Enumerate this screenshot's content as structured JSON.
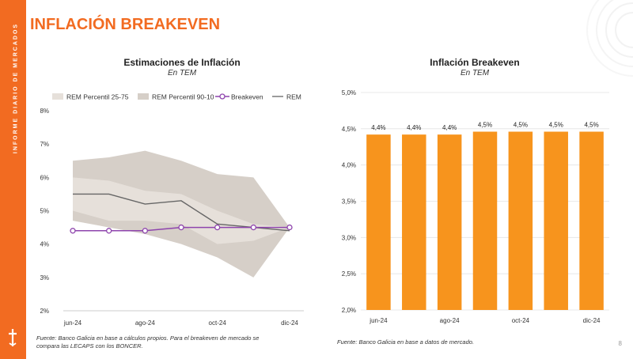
{
  "sidebar": {
    "text": "INFORME DIARIO DE MERCADOS"
  },
  "page": {
    "title": "INFLACIÓN BREAKEVEN",
    "number": "8"
  },
  "colors": {
    "accent": "#f26b21",
    "bar": "#f7941d",
    "breakeven": "#8e44ad",
    "rem": "#666666",
    "band_outer": "#e6e0da",
    "band_inner": "#d6cfc8"
  },
  "left_chart": {
    "title": "Estimaciones de Inflación",
    "subtitle": "En TEM",
    "source": [
      "Fuente: Banco Galicia en base a cálculos propios. Para el breakeven de mercado se",
      "compara las LECAPS con los BONCER."
    ]
  },
  "right_chart": {
    "title": "Inflación Breakeven",
    "subtitle": "En TEM",
    "source": "Fuente: Banco Galicia en base a datos de mercado."
  },
  "chart_data": [
    {
      "type": "area",
      "title": "Estimaciones de Inflación",
      "subtitle": "En TEM",
      "x": [
        "jun-24",
        "jul-24",
        "ago-24",
        "sep-24",
        "oct-24",
        "nov-24",
        "dic-24"
      ],
      "x_tick_labels": [
        "jun-24",
        "ago-24",
        "oct-24",
        "dic-24"
      ],
      "ylim": [
        2,
        8
      ],
      "y_ticks": [
        2,
        3,
        4,
        5,
        6,
        7,
        8
      ],
      "y_tick_labels": [
        "2%",
        "3%",
        "4%",
        "5%",
        "6%",
        "7%",
        "8%"
      ],
      "legend": [
        "REM Percentil 25-75",
        "REM Percentil 90-10",
        "Breakeven",
        "REM"
      ],
      "legend_position": "top",
      "series": [
        {
          "name": "REM Percentil 90-10",
          "kind": "band",
          "low": [
            4.7,
            4.5,
            4.3,
            4.0,
            3.6,
            3.0,
            4.5
          ],
          "high": [
            6.5,
            6.6,
            6.8,
            6.5,
            6.1,
            6.0,
            4.5
          ]
        },
        {
          "name": "REM Percentil 25-75",
          "kind": "band",
          "low": [
            5.0,
            4.7,
            4.7,
            4.6,
            4.0,
            4.1,
            4.5
          ],
          "high": [
            6.0,
            5.9,
            5.6,
            5.5,
            5.0,
            4.6,
            4.5
          ]
        },
        {
          "name": "REM",
          "kind": "line",
          "values": [
            5.5,
            5.5,
            5.2,
            5.3,
            4.6,
            4.5,
            4.4
          ]
        },
        {
          "name": "Breakeven",
          "kind": "line-marker",
          "values": [
            4.4,
            4.4,
            4.4,
            4.5,
            4.5,
            4.5,
            4.5
          ]
        }
      ]
    },
    {
      "type": "bar",
      "title": "Inflación Breakeven",
      "subtitle": "En TEM",
      "categories": [
        "jun-24",
        "jul-24",
        "ago-24",
        "sep-24",
        "oct-24",
        "nov-24",
        "dic-24"
      ],
      "x_tick_labels": [
        "jun-24",
        "",
        "ago-24",
        "",
        "oct-24",
        "",
        "dic-24"
      ],
      "values": [
        4.42,
        4.42,
        4.42,
        4.46,
        4.46,
        4.46,
        4.46
      ],
      "data_labels": [
        "4,4%",
        "4,4%",
        "4,4%",
        "4,5%",
        "4,5%",
        "4,5%",
        "4,5%"
      ],
      "ylim": [
        2.0,
        5.0
      ],
      "y_ticks": [
        2.0,
        2.5,
        3.0,
        3.5,
        4.0,
        4.5,
        5.0
      ],
      "y_tick_labels": [
        "2,0%",
        "2,5%",
        "3,0%",
        "3,5%",
        "4,0%",
        "4,5%",
        "5,0%"
      ]
    }
  ]
}
